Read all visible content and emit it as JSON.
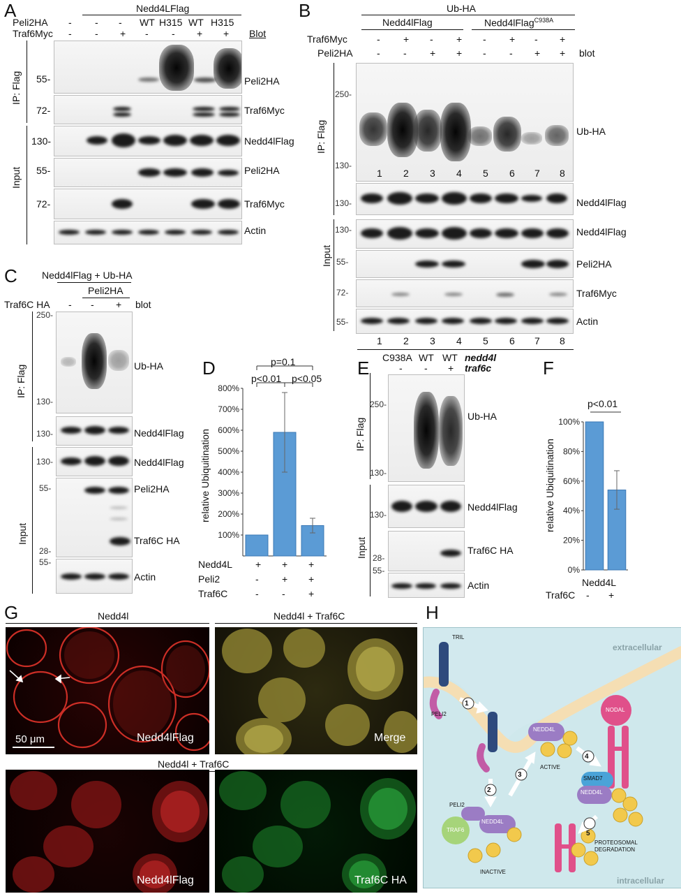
{
  "panels": {
    "A": {
      "label": "A",
      "header": "Nedd4LFlag",
      "rows": {
        "peli2ha": {
          "label": "Peli2HA",
          "values": [
            "-",
            "-",
            "-",
            "WT",
            "H315",
            "WT",
            "H315"
          ]
        },
        "traf6myc": {
          "label": "Traf6Myc",
          "values": [
            "-",
            "-",
            "+",
            "-",
            "-",
            "+",
            "+"
          ]
        }
      },
      "blot_heading": "Blot",
      "side_ip": "IP: Flag",
      "side_input": "Input",
      "blots": [
        {
          "mw": "55-",
          "name": "Peli2HA"
        },
        {
          "mw": "72-",
          "name": "Traf6Myc"
        },
        {
          "mw": "130-",
          "name": "Nedd4lFlag"
        },
        {
          "mw": "55-",
          "name": "Peli2HA"
        },
        {
          "mw": "72-",
          "name": "Traf6Myc"
        },
        {
          "mw": "",
          "name": "Actin"
        }
      ]
    },
    "B": {
      "label": "B",
      "header": "Ub-HA",
      "group1": "Nedd4lFlag",
      "group2": "Nedd4lFlag",
      "group2_sup": "C938A",
      "rows": {
        "traf6myc": {
          "label": "Traf6Myc",
          "values": [
            "-",
            "+",
            "-",
            "+",
            "-",
            "+",
            "-",
            "+"
          ]
        },
        "peli2ha": {
          "label": "Peli2HA",
          "values": [
            "-",
            "-",
            "+",
            "+",
            "-",
            "-",
            "+",
            "+"
          ]
        }
      },
      "blot_heading": "blot",
      "side_ip": "IP: Flag",
      "side_input": "Input",
      "mw_top": "250-",
      "mw_bottom": "130-",
      "lanes": [
        "1",
        "2",
        "3",
        "4",
        "5",
        "6",
        "7",
        "8"
      ],
      "blots": [
        {
          "mw": "",
          "name": "Ub-HA"
        },
        {
          "mw": "130-",
          "name": "Nedd4lFlag"
        },
        {
          "mw": "130-",
          "name": "Nedd4lFlag"
        },
        {
          "mw": "55-",
          "name": "Peli2HA"
        },
        {
          "mw": "72-",
          "name": "Traf6Myc"
        },
        {
          "mw": "55-",
          "name": "Actin"
        }
      ]
    },
    "C": {
      "label": "C",
      "header": "Nedd4lFlag + Ub-HA",
      "subheader": "Peli2HA",
      "row_label": "Traf6C HA",
      "row_values": [
        "-",
        "-",
        "+"
      ],
      "blot_heading": "blot",
      "side_ip": "IP: Flag",
      "side_input": "Input",
      "mw": {
        "m250": "250-",
        "m130a": "130-",
        "m130b": "130-",
        "m130c": "130-",
        "m55": "55-",
        "m28": "28-",
        "m55b": "55-"
      },
      "blots": [
        {
          "name": "Ub-HA"
        },
        {
          "name": "Nedd4lFlag"
        },
        {
          "name": "Nedd4lFlag"
        },
        {
          "name": "Peli2HA"
        },
        {
          "name": "Traf6C HA"
        },
        {
          "name": "Actin"
        }
      ]
    },
    "D": {
      "label": "D",
      "ylabel": "relative Ubiquitination",
      "sig": {
        "top": "p=0.1",
        "left": "p<0.01",
        "right": "p<0.05"
      },
      "rows": [
        {
          "label": "Nedd4L",
          "values": [
            "+",
            "+",
            "+"
          ]
        },
        {
          "label": "Peli2",
          "values": [
            "-",
            "+",
            "+"
          ]
        },
        {
          "label": "Traf6C",
          "values": [
            "-",
            "-",
            "+"
          ]
        }
      ]
    },
    "E": {
      "label": "E",
      "lanes": [
        "C938A",
        "WT",
        "WT"
      ],
      "traf": [
        "-",
        "-",
        "+"
      ],
      "lane_note": "nedd4l",
      "traf_note": "traf6c",
      "side_ip": "IP: Flag",
      "side_input": "Input",
      "mw": {
        "m250": "250-",
        "m130a": "130-",
        "m130b": "130-",
        "m28": "28-",
        "m55": "55-"
      },
      "blots": [
        {
          "name": "Ub-HA"
        },
        {
          "name": "Nedd4lFlag"
        },
        {
          "name": "Traf6C HA"
        },
        {
          "name": "Actin"
        }
      ]
    },
    "F": {
      "label": "F",
      "ylabel": "relative Ubiquitination",
      "sig": "p<0.01",
      "xlabel": "Nedd4L",
      "row_label": "Traf6C",
      "row_values": [
        "-",
        "+"
      ]
    },
    "G": {
      "label": "G",
      "title_top_left": "Nedd4l",
      "title_top_right": "Nedd4l + Traf6C",
      "title_bottom": "Nedd4l + Traf6C",
      "scale": "50 μm",
      "captions": [
        "Nedd4lFlag",
        "Merge",
        "Nedd4lFlag",
        "Traf6C HA"
      ]
    },
    "H": {
      "label": "H",
      "extracellular": "extracellular",
      "intracellular": "intracellular",
      "tril": "TRIL",
      "peli2_top": "PELI2",
      "peli2_bottom": "PELI2",
      "traf6": "TRAF6",
      "nedd4l_inactive": "NEDD4L",
      "nedd4l_active": "NEDD4L",
      "nedd4l_smad": "NEDD4L",
      "smad7": "SMAD7",
      "nodal": "NODAL",
      "ub": "UB",
      "active": "ACTIVE",
      "inactive": "INACTIVE",
      "degradation": "PROTEOSOMAL DEGRADATION",
      "steps": [
        "1",
        "2",
        "3",
        "4",
        "5"
      ]
    }
  },
  "chart_data": [
    {
      "type": "bar",
      "panel": "D",
      "categories": [
        "Nedd4L",
        "Nedd4L + Peli2",
        "Nedd4L + Peli2 + Traf6C"
      ],
      "values": [
        100,
        590,
        145
      ],
      "errors": [
        0,
        190,
        35
      ],
      "ylim": [
        0,
        800
      ],
      "yticks": [
        "100%",
        "200%",
        "300%",
        "400%",
        "500%",
        "600%",
        "700%",
        "800%"
      ],
      "ytick_values": [
        100,
        200,
        300,
        400,
        500,
        600,
        700,
        800
      ],
      "ylabel": "relative Ubiquitination"
    },
    {
      "type": "bar",
      "panel": "F",
      "categories": [
        "Nedd4L -Traf6C",
        "Nedd4L +Traf6C"
      ],
      "values": [
        100,
        54
      ],
      "errors": [
        0,
        13
      ],
      "ylim": [
        0,
        100
      ],
      "yticks": [
        "0%",
        "20%",
        "40%",
        "60%",
        "80%",
        "100%"
      ],
      "ytick_values": [
        0,
        20,
        40,
        60,
        80,
        100
      ],
      "ylabel": "relative Ubiquitination"
    }
  ]
}
